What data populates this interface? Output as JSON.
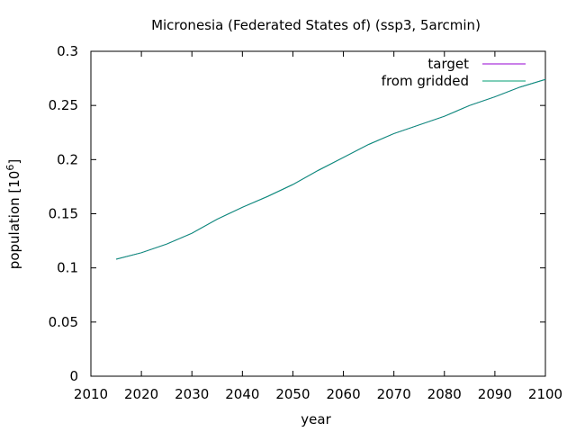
{
  "chart_data": {
    "type": "line",
    "title": "Micronesia (Federated States of) (ssp3, 5arcmin)",
    "xlabel": "year",
    "ylabel_main": "population [10",
    "ylabel_exp": "6",
    "ylabel_close": "]",
    "xlim": [
      2010,
      2100
    ],
    "ylim": [
      0,
      0.3
    ],
    "xticks": [
      2010,
      2020,
      2030,
      2040,
      2050,
      2060,
      2070,
      2080,
      2090,
      2100
    ],
    "yticks": [
      0,
      0.05,
      0.1,
      0.15,
      0.2,
      0.25,
      0.3
    ],
    "ytick_labels": [
      "0",
      "0.05",
      "0.1",
      "0.15",
      "0.2",
      "0.25",
      "0.3"
    ],
    "grid": false,
    "legend_position": "top-right",
    "series": [
      {
        "name": "target",
        "color": "#9400d3",
        "x": [
          2015,
          2020,
          2025,
          2030,
          2035,
          2040,
          2045,
          2050,
          2055,
          2060,
          2065,
          2070,
          2075,
          2080,
          2085,
          2090,
          2095,
          2100
        ],
        "values": [
          0.108,
          0.114,
          0.122,
          0.132,
          0.145,
          0.156,
          0.166,
          0.177,
          0.19,
          0.202,
          0.214,
          0.224,
          0.232,
          0.24,
          0.25,
          0.258,
          0.267,
          0.274
        ]
      },
      {
        "name": "from gridded",
        "color": "#009e73",
        "x": [
          2015,
          2020,
          2025,
          2030,
          2035,
          2040,
          2045,
          2050,
          2055,
          2060,
          2065,
          2070,
          2075,
          2080,
          2085,
          2090,
          2095,
          2100
        ],
        "values": [
          0.108,
          0.114,
          0.122,
          0.132,
          0.145,
          0.156,
          0.166,
          0.177,
          0.19,
          0.202,
          0.214,
          0.224,
          0.232,
          0.24,
          0.25,
          0.258,
          0.267,
          0.274
        ]
      }
    ]
  }
}
